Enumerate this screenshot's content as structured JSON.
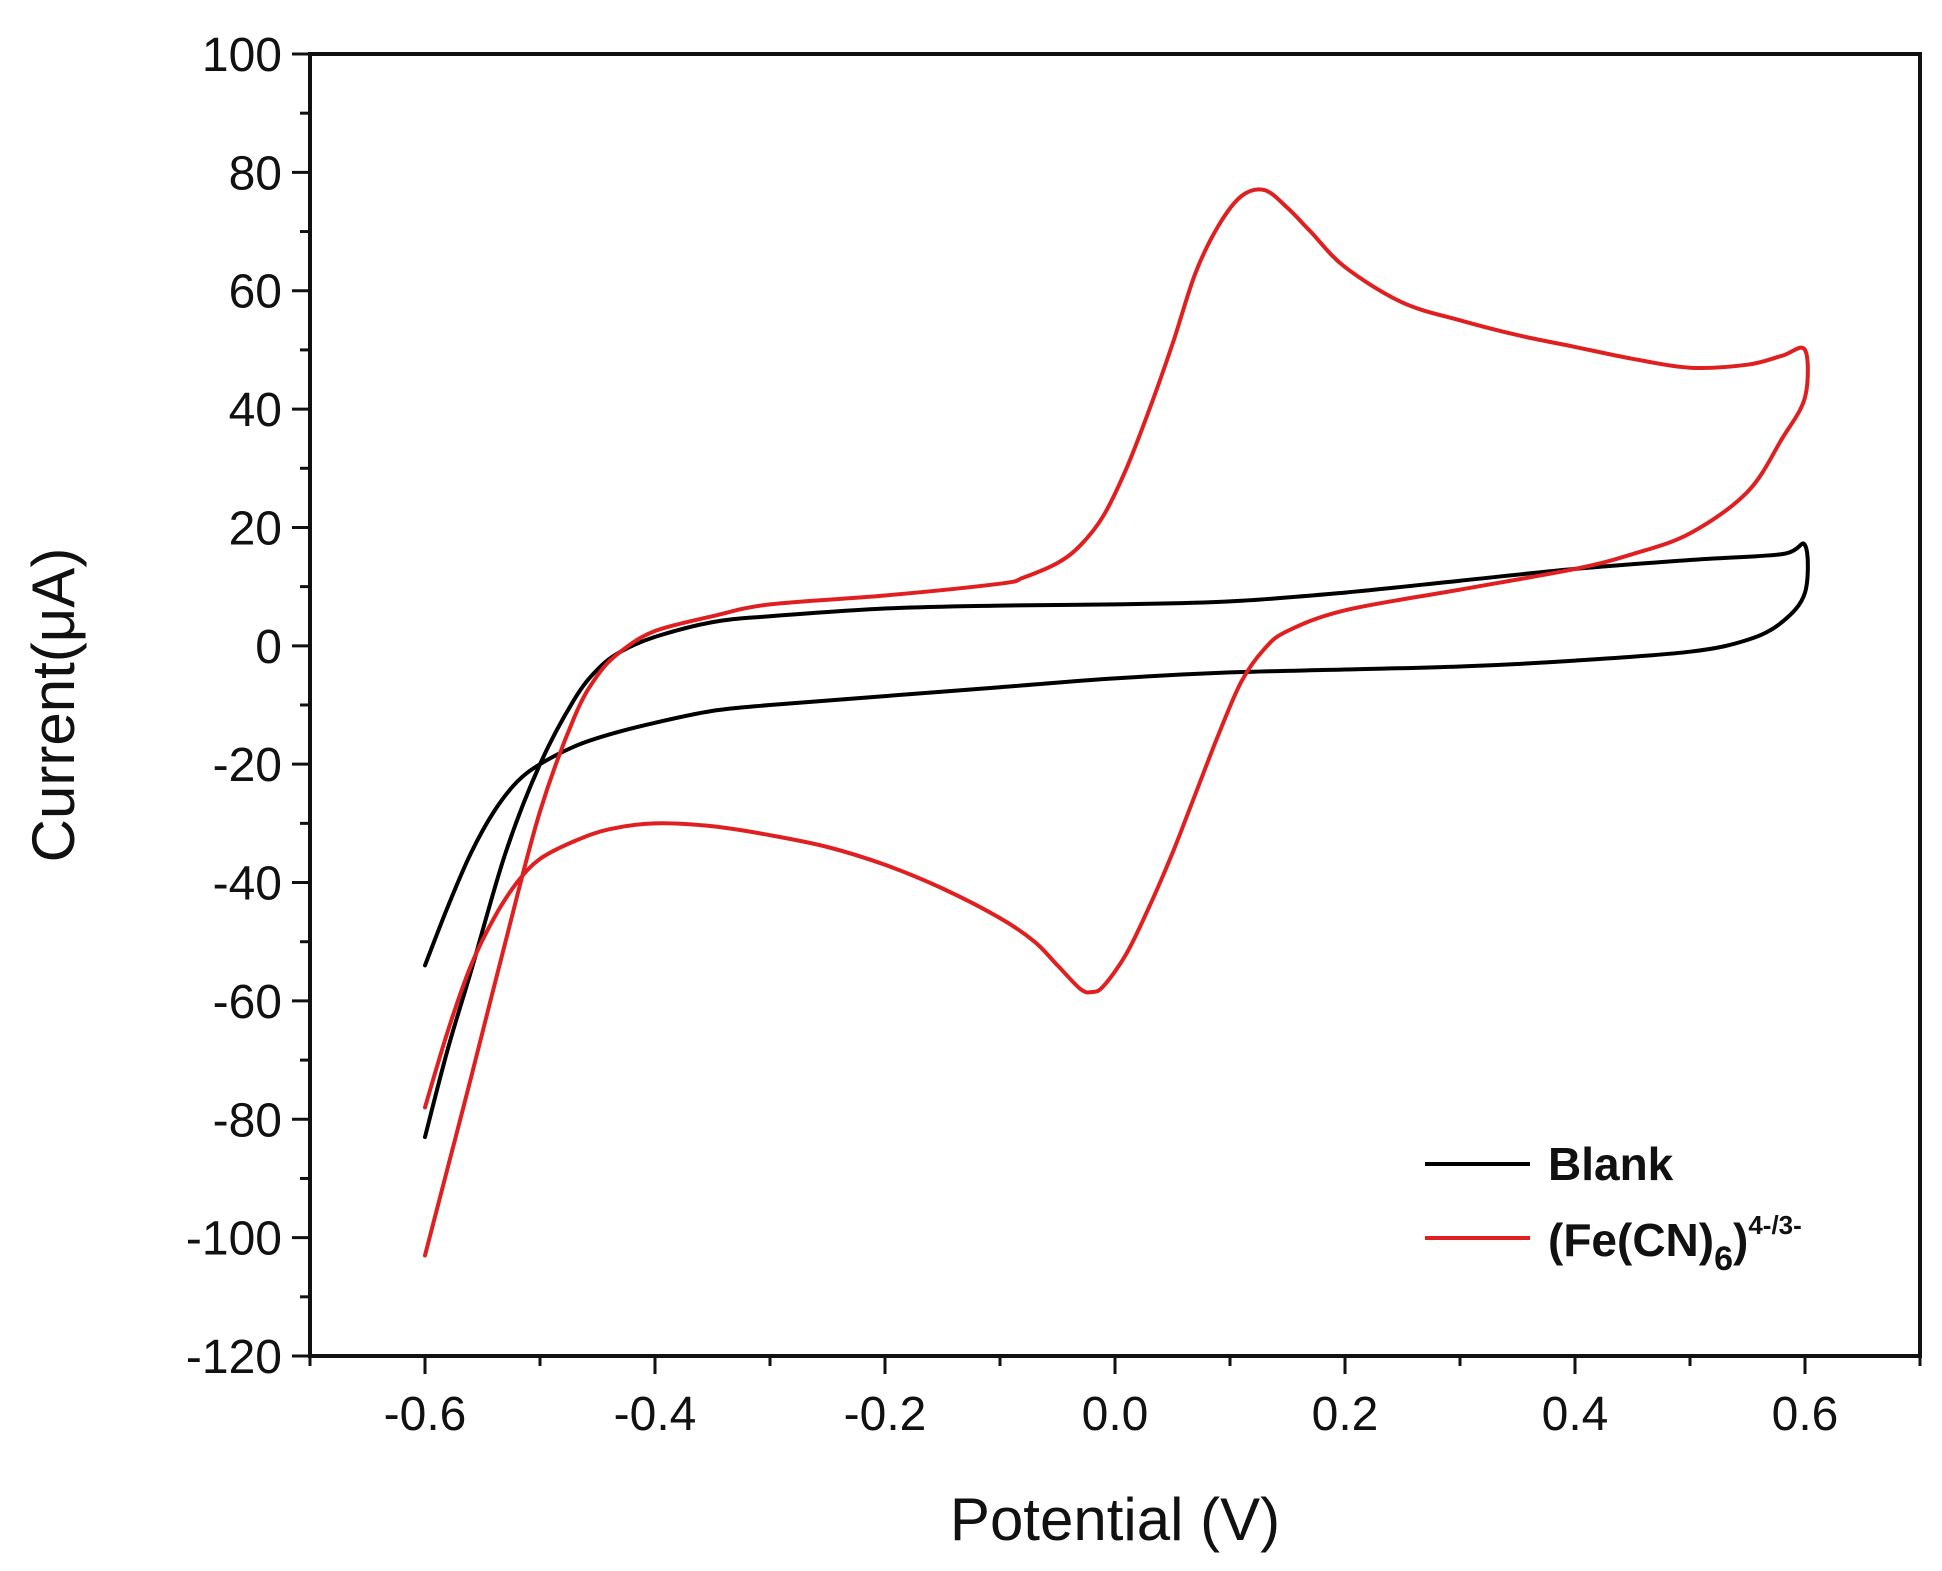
{
  "chart_data": {
    "type": "line",
    "title": "",
    "xlabel": "Potential (V)",
    "ylabel": "Current(μA)",
    "xlim": [
      -0.7,
      0.7
    ],
    "ylim": [
      -120,
      100
    ],
    "xticks": [
      -0.6,
      -0.4,
      -0.2,
      0.0,
      0.2,
      0.4,
      0.6
    ],
    "xtick_labels": [
      "-0.6",
      "-0.4",
      "-0.2",
      "0.0",
      "0.2",
      "0.4",
      "0.6"
    ],
    "yticks": [
      100,
      80,
      60,
      40,
      20,
      0,
      -20,
      -40,
      -60,
      -80,
      -100,
      -120
    ],
    "ytick_labels": [
      "100",
      "80",
      "60",
      "40",
      "20",
      "0",
      "-20",
      "-40",
      "-60",
      "-80",
      "-100",
      "-120"
    ],
    "grid": false,
    "legend_position": "bottom-right",
    "series": [
      {
        "name": "Blank",
        "legend_label": "Blank",
        "color": "#000000",
        "points": [
          [
            -0.6,
            -54
          ],
          [
            -0.58,
            -44
          ],
          [
            -0.56,
            -35
          ],
          [
            -0.54,
            -28
          ],
          [
            -0.52,
            -23
          ],
          [
            -0.5,
            -20
          ],
          [
            -0.47,
            -17
          ],
          [
            -0.44,
            -15
          ],
          [
            -0.4,
            -13
          ],
          [
            -0.35,
            -11
          ],
          [
            -0.3,
            -10
          ],
          [
            -0.2,
            -8.5
          ],
          [
            -0.1,
            -7
          ],
          [
            0.0,
            -5.5
          ],
          [
            0.1,
            -4.5
          ],
          [
            0.2,
            -4
          ],
          [
            0.3,
            -3.5
          ],
          [
            0.4,
            -2.5
          ],
          [
            0.5,
            -1
          ],
          [
            0.55,
            1
          ],
          [
            0.58,
            4
          ],
          [
            0.6,
            9
          ],
          [
            0.6,
            17
          ],
          [
            0.58,
            15.5
          ],
          [
            0.5,
            14.5
          ],
          [
            0.4,
            13
          ],
          [
            0.3,
            11
          ],
          [
            0.2,
            9
          ],
          [
            0.1,
            7.5
          ],
          [
            0.0,
            7
          ],
          [
            -0.1,
            6.8
          ],
          [
            -0.2,
            6.3
          ],
          [
            -0.3,
            5
          ],
          [
            -0.35,
            4
          ],
          [
            -0.4,
            1.5
          ],
          [
            -0.43,
            -1
          ],
          [
            -0.45,
            -4
          ],
          [
            -0.47,
            -9
          ],
          [
            -0.5,
            -20
          ],
          [
            -0.53,
            -35
          ],
          [
            -0.56,
            -55
          ],
          [
            -0.58,
            -68
          ],
          [
            -0.6,
            -83
          ]
        ]
      },
      {
        "name": "Fe(CN)6 4-/3-",
        "legend_label": "(Fe(CN)",
        "legend_sub": "6",
        "legend_sup": "4-/3-",
        "color": "#e02020",
        "points": [
          [
            -0.6,
            -78
          ],
          [
            -0.58,
            -65
          ],
          [
            -0.56,
            -54
          ],
          [
            -0.54,
            -46
          ],
          [
            -0.52,
            -40
          ],
          [
            -0.5,
            -36
          ],
          [
            -0.47,
            -33
          ],
          [
            -0.44,
            -31
          ],
          [
            -0.4,
            -30
          ],
          [
            -0.35,
            -30.5
          ],
          [
            -0.3,
            -32
          ],
          [
            -0.25,
            -34
          ],
          [
            -0.2,
            -37
          ],
          [
            -0.15,
            -41
          ],
          [
            -0.1,
            -46
          ],
          [
            -0.07,
            -50
          ],
          [
            -0.05,
            -54
          ],
          [
            -0.03,
            -58
          ],
          [
            -0.02,
            -58.5
          ],
          [
            -0.01,
            -57.5
          ],
          [
            0.01,
            -52
          ],
          [
            0.03,
            -44
          ],
          [
            0.05,
            -35
          ],
          [
            0.07,
            -25
          ],
          [
            0.09,
            -15
          ],
          [
            0.11,
            -6
          ],
          [
            0.13,
            -0.5
          ],
          [
            0.15,
            2.5
          ],
          [
            0.2,
            6
          ],
          [
            0.3,
            9.5
          ],
          [
            0.4,
            13
          ],
          [
            0.45,
            15.5
          ],
          [
            0.5,
            19
          ],
          [
            0.55,
            26
          ],
          [
            0.58,
            35
          ],
          [
            0.6,
            42
          ],
          [
            0.6,
            50
          ],
          [
            0.58,
            49
          ],
          [
            0.55,
            47.5
          ],
          [
            0.5,
            47
          ],
          [
            0.45,
            48.5
          ],
          [
            0.4,
            50.5
          ],
          [
            0.35,
            52.5
          ],
          [
            0.3,
            55
          ],
          [
            0.25,
            58
          ],
          [
            0.2,
            64
          ],
          [
            0.17,
            70
          ],
          [
            0.15,
            74
          ],
          [
            0.13,
            77
          ],
          [
            0.11,
            76
          ],
          [
            0.09,
            71
          ],
          [
            0.07,
            63
          ],
          [
            0.05,
            51
          ],
          [
            0.03,
            40
          ],
          [
            0.01,
            30
          ],
          [
            -0.01,
            22
          ],
          [
            -0.03,
            17
          ],
          [
            -0.05,
            14
          ],
          [
            -0.08,
            11.5
          ],
          [
            -0.1,
            10.5
          ],
          [
            -0.2,
            8.5
          ],
          [
            -0.3,
            7
          ],
          [
            -0.35,
            5
          ],
          [
            -0.4,
            2.5
          ],
          [
            -0.43,
            -1
          ],
          [
            -0.45,
            -5
          ],
          [
            -0.47,
            -12
          ],
          [
            -0.5,
            -28
          ],
          [
            -0.53,
            -50
          ],
          [
            -0.56,
            -73
          ],
          [
            -0.58,
            -88
          ],
          [
            -0.6,
            -103
          ]
        ]
      }
    ]
  }
}
